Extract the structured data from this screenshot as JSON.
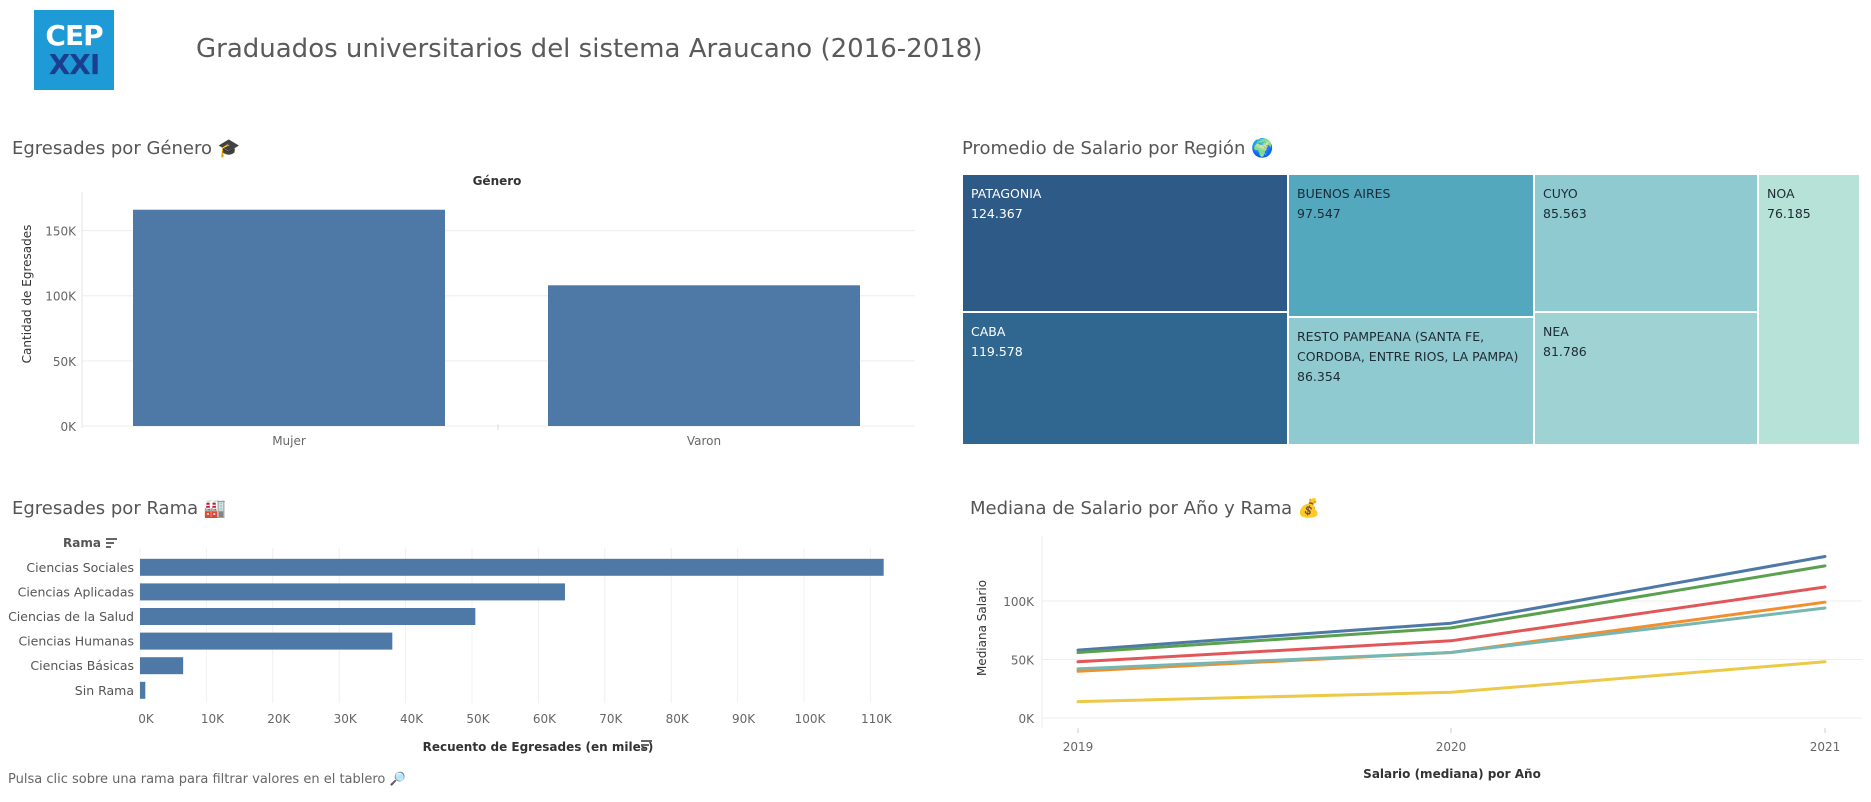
{
  "logo": {
    "line1": "CEP",
    "line2": "XXI"
  },
  "title": "Graduados universitarios del sistema Araucano (2016-2018)",
  "sections": {
    "genero": "Egresades por Género 🎓",
    "region": "Promedio de Salario por Región 🌍",
    "rama": "Egresades por Rama 🏭",
    "mediana": "Mediana de Salario por Año y Rama 💰"
  },
  "footer": "Pulsa clic sobre una rama para filtrar valores en el tablero 🔎",
  "colors": {
    "bar": "#4e79a7"
  },
  "chart_data": [
    {
      "id": "genero",
      "type": "bar",
      "header": "Género",
      "ylabel": "Cantidad de Egresades",
      "categories": [
        "Mujer",
        "Varon"
      ],
      "values": [
        166000,
        108000
      ],
      "ylim": [
        0,
        175000
      ],
      "yticks": [
        0,
        50000,
        100000,
        150000
      ],
      "ytick_labels": [
        "0K",
        "50K",
        "100K",
        "150K"
      ]
    },
    {
      "id": "region",
      "type": "treemap",
      "items": [
        {
          "name": "PATAGONIA",
          "value_label": "124.367",
          "value": 124367,
          "color": "#2e5a87",
          "text": "#ffffff"
        },
        {
          "name": "CABA",
          "value_label": "119.578",
          "value": 119578,
          "color": "#306790",
          "text": "#ffffff"
        },
        {
          "name": "BUENOS AIRES",
          "value_label": "97.547",
          "value": 97547,
          "color": "#53a8be",
          "text": "#1e2a33"
        },
        {
          "name": "RESTO PAMPEANA (SANTA FE, CORDOBA, ENTRE RIOS, LA PAMPA)",
          "value_label": "86.354",
          "value": 86354,
          "color": "#8ecad0",
          "text": "#1e2a33"
        },
        {
          "name": "CUYO",
          "value_label": "85.563",
          "value": 85563,
          "color": "#8ecad0",
          "text": "#1e2a33"
        },
        {
          "name": "NEA",
          "value_label": "81.786",
          "value": 81786,
          "color": "#9fd3d3",
          "text": "#1e2a33"
        },
        {
          "name": "NOA",
          "value_label": "76.185",
          "value": 76185,
          "color": "#b6e2d7",
          "text": "#1e2a33"
        }
      ]
    },
    {
      "id": "rama",
      "type": "bar",
      "orientation": "horizontal",
      "header": "Rama",
      "xlabel": "Recuento de Egresades (en miles)",
      "categories": [
        "Ciencias Sociales",
        "Ciencias Aplicadas",
        "Ciencias de la Salud",
        "Ciencias Humanas",
        "Ciencias Básicas",
        "Sin Rama"
      ],
      "values": [
        112,
        64,
        50.5,
        38,
        6.5,
        0.8
      ],
      "xlim": [
        0,
        115
      ],
      "xticks": [
        0,
        10,
        20,
        30,
        40,
        50,
        60,
        70,
        80,
        90,
        100,
        110
      ],
      "xtick_labels": [
        "0K",
        "10K",
        "20K",
        "30K",
        "40K",
        "50K",
        "60K",
        "70K",
        "80K",
        "90K",
        "100K",
        "110K"
      ]
    },
    {
      "id": "mediana",
      "type": "line",
      "xlabel": "Salario (mediana) por Año",
      "ylabel": "Mediana Salario",
      "x": [
        "2019",
        "2020",
        "2021"
      ],
      "ylim": [
        0,
        140000
      ],
      "yticks": [
        0,
        50000,
        100000
      ],
      "ytick_labels": [
        "0K",
        "50K",
        "100K"
      ],
      "series": [
        {
          "color": "#4e79a7",
          "values": [
            58000,
            81000,
            138000
          ]
        },
        {
          "color": "#59a14f",
          "values": [
            56000,
            77000,
            130000
          ]
        },
        {
          "color": "#e15759",
          "values": [
            48000,
            66000,
            112000
          ]
        },
        {
          "color": "#f28e2b",
          "values": [
            40000,
            56000,
            99000
          ]
        },
        {
          "color": "#76b7b2",
          "values": [
            42000,
            56000,
            94000
          ]
        },
        {
          "color": "#edc948",
          "values": [
            14000,
            22000,
            48000
          ]
        }
      ]
    }
  ]
}
